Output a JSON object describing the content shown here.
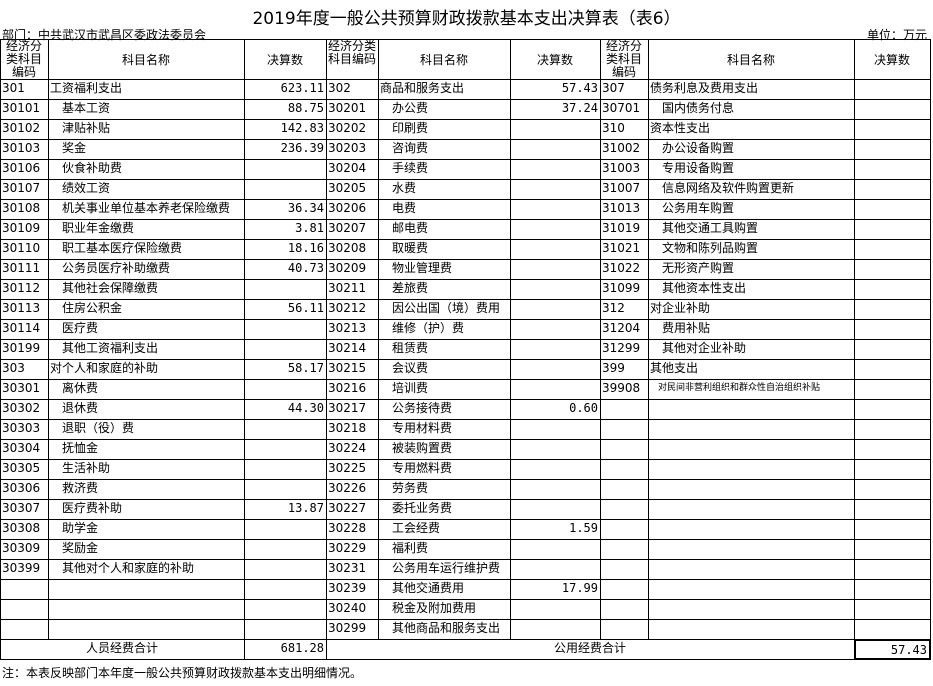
{
  "title": "2019年度一般公共预算财政拨款基本支出决算表（表6）",
  "department": "部门：中共武汉市武昌区委政法委员会",
  "unit": "单位：万元",
  "table": {
    "header": [
      "经济分类科目编码",
      "科目名称",
      "决算数",
      "经济分类科目编码",
      "科目名称",
      "决算数",
      "经济分类科目编码",
      "科目名称",
      "决算数"
    ],
    "rows": [
      [
        "301",
        "工资福利支出",
        "623.11",
        "302",
        "商品和服务支出",
        "57.43",
        "307",
        "债务利息及费用支出",
        null
      ],
      [
        "30101",
        "基本工资",
        "88.75",
        "30201",
        "办公费",
        "37.24",
        "30701",
        "国内债务付息",
        null
      ],
      [
        "30102",
        "津贴补贴",
        "142.83",
        "30202",
        "印刷费",
        null,
        "310",
        "资本性支出",
        null
      ],
      [
        "30103",
        "奖金",
        "236.39",
        "30203",
        "咨询费",
        null,
        "31002",
        "办公设备购置",
        null
      ],
      [
        "30106",
        "伙食补助费",
        null,
        "30204",
        "手续费",
        null,
        "31003",
        "专用设备购置",
        null
      ],
      [
        "30107",
        "绩效工资",
        null,
        "30205",
        "水费",
        null,
        "31007",
        "信息网络及软件购置更新",
        null
      ],
      [
        "30108",
        "机关事业单位基本养老保险缴费",
        "36.34",
        "30206",
        "电费",
        null,
        "31013",
        "公务用车购置",
        null
      ],
      [
        "30109",
        "职业年金缴费",
        "3.81",
        "30207",
        "邮电费",
        null,
        "31019",
        "其他交通工具购置",
        null
      ],
      [
        "30110",
        "职工基本医疗保险缴费",
        "18.16",
        "30208",
        "取暖费",
        null,
        "31021",
        "文物和陈列品购置",
        null
      ],
      [
        "30111",
        "公务员医疗补助缴费",
        "40.73",
        "30209",
        "物业管理费",
        null,
        "31022",
        "无形资产购置",
        null
      ],
      [
        "30112",
        "其他社会保障缴费",
        null,
        "30211",
        "差旅费",
        null,
        "31099",
        "其他资本性支出",
        null
      ],
      [
        "30113",
        "住房公积金",
        "56.11",
        "30212",
        "因公出国（境）费用",
        null,
        "312",
        "对企业补助",
        null
      ],
      [
        "30114",
        "医疗费",
        null,
        "30213",
        "维修（护）费",
        null,
        "31204",
        "费用补贴",
        null
      ],
      [
        "30199",
        "其他工资福利支出",
        null,
        "30214",
        "租赁费",
        null,
        "31299",
        "其他对企业补助",
        null
      ],
      [
        "303",
        "对个人和家庭的补助",
        "58.17",
        "30215",
        "会议费",
        null,
        "399",
        "其他支出",
        null
      ],
      [
        "30301",
        "离休费",
        null,
        "30216",
        "培训费",
        null,
        "39908",
        "对民间非营利组织和群众性自治组织补贴",
        null
      ],
      [
        "30302",
        "退休费",
        "44.30",
        "30217",
        "公务接待费",
        "0.60",
        null,
        null,
        null
      ],
      [
        "30303",
        "退职（役）费",
        null,
        "30218",
        "专用材料费",
        null,
        null,
        null,
        null
      ],
      [
        "30304",
        "抚恤金",
        null,
        "30224",
        "被装购置费",
        null,
        null,
        null,
        null
      ],
      [
        "30305",
        "生活补助",
        null,
        "30225",
        "专用燃料费",
        null,
        null,
        null,
        null
      ],
      [
        "30306",
        "救济费",
        null,
        "30226",
        "劳务费",
        null,
        null,
        null,
        null
      ],
      [
        "30307",
        "医疗费补助",
        "13.87",
        "30227",
        "委托业务费",
        null,
        null,
        null,
        null
      ],
      [
        "30308",
        "助学金",
        null,
        "30228",
        "工会经费",
        "1.59",
        null,
        null,
        null
      ],
      [
        "30309",
        "奖励金",
        null,
        "30229",
        "福利费",
        null,
        null,
        null,
        null
      ],
      [
        "30399",
        "其他对个人和家庭的补助",
        null,
        "30231",
        "公务用车运行维护费",
        null,
        null,
        null,
        null
      ],
      [
        null,
        null,
        null,
        "30239",
        "其他交通费用",
        "17.99",
        null,
        null,
        null
      ],
      [
        null,
        null,
        null,
        "30240",
        "税金及附加费用",
        null,
        null,
        null,
        null
      ],
      [
        null,
        null,
        null,
        "30299",
        "其他商品和服务支出",
        null,
        null,
        null,
        null
      ]
    ],
    "totals": {
      "personnel_label": "人员经费合计",
      "personnel_value": "681.28",
      "public_label": "公用经费合计",
      "public_value": "57.43"
    }
  },
  "note": "注：本表反映部门本年度一般公共预算财政拨款基本支出明细情况。"
}
